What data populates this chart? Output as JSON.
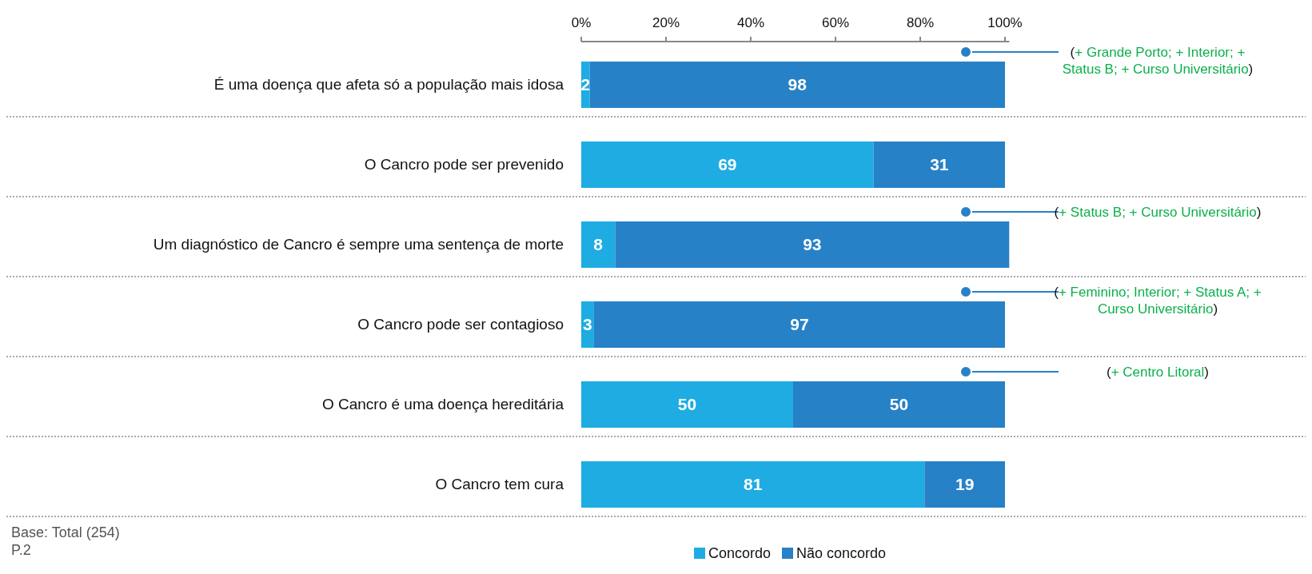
{
  "chart_data": {
    "type": "bar",
    "orientation": "horizontal",
    "stacked": true,
    "data_labels": true,
    "legend": "bottom",
    "grid": false,
    "categories": [
      "É uma doença que afeta só a população mais idosa",
      "O Cancro pode ser prevenido",
      "Um diagnóstico de Cancro é sempre uma sentença de morte",
      "O Cancro pode ser contagioso",
      "O Cancro é uma doença hereditária",
      "O Cancro tem cura"
    ],
    "series": [
      {
        "name": "Concordo",
        "color": "#1eace3",
        "values": [
          2,
          69,
          8,
          3,
          50,
          81
        ]
      },
      {
        "name": "Não concordo",
        "color": "#2781c6",
        "values": [
          98,
          31,
          93,
          97,
          50,
          19
        ]
      }
    ],
    "xlim": [
      0,
      101
    ],
    "xticks": [
      {
        "value": 0,
        "label": "0%"
      },
      {
        "value": 20,
        "label": "20%"
      },
      {
        "value": 40,
        "label": "40%"
      },
      {
        "value": 60,
        "label": "60%"
      },
      {
        "value": 80,
        "label": "80%"
      },
      {
        "value": 100,
        "label": "100%"
      }
    ],
    "annotations": [
      "(+ Grande Porto; + Interior; + Status B; + Curso Universitário)",
      "(+ Status B; + Curso Universitário)",
      "(+ Feminino; Interior; + Status A; + Curso Universitário)",
      "(+ Centro Litoral)",
      "Base: Total (254)",
      "P.2"
    ]
  }
}
